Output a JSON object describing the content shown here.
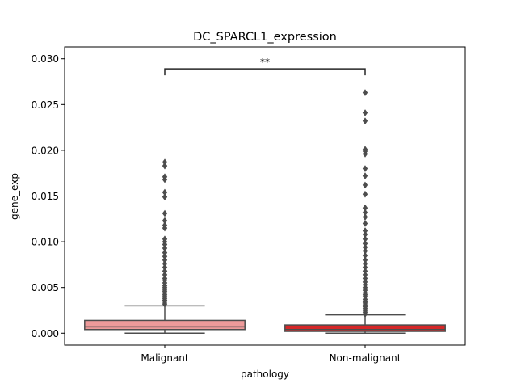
{
  "chart_data": {
    "type": "box",
    "title": "DC_SPARCL1_expression",
    "xlabel": "pathology",
    "ylabel": "gene_exp",
    "ylim": [
      -0.0013,
      0.0313
    ],
    "yticks": [
      0.0,
      0.005,
      0.01,
      0.015,
      0.02,
      0.025,
      0.03
    ],
    "ytick_labels": [
      "0.000",
      "0.005",
      "0.010",
      "0.015",
      "0.020",
      "0.025",
      "0.030"
    ],
    "categories": [
      "Malignant",
      "Non-malignant"
    ],
    "boxes": [
      {
        "category": "Malignant",
        "color": "#EE9A9A",
        "whisker_low": 0.0,
        "q1": 0.0004,
        "median": 0.0007,
        "q3": 0.0014,
        "whisker_high": 0.003,
        "outliers": [
          0.0032,
          0.0034,
          0.0036,
          0.0038,
          0.004,
          0.0042,
          0.0044,
          0.0046,
          0.0048,
          0.005,
          0.0052,
          0.0055,
          0.0058,
          0.006,
          0.0064,
          0.0068,
          0.0072,
          0.0076,
          0.008,
          0.0084,
          0.0088,
          0.0093,
          0.0097,
          0.01,
          0.0103,
          0.0115,
          0.0118,
          0.0123,
          0.0131,
          0.0149,
          0.0154,
          0.0168,
          0.0171,
          0.0183,
          0.0187
        ]
      },
      {
        "category": "Non-malignant",
        "color": "#D62728",
        "whisker_low": 0.0,
        "q1": 0.0002,
        "median": 0.0004,
        "q3": 0.0009,
        "whisker_high": 0.002,
        "outliers": [
          0.0021,
          0.0023,
          0.0025,
          0.0027,
          0.0029,
          0.0031,
          0.0033,
          0.0035,
          0.0037,
          0.004,
          0.0042,
          0.0044,
          0.0047,
          0.005,
          0.0053,
          0.0056,
          0.006,
          0.0064,
          0.0068,
          0.0072,
          0.0076,
          0.008,
          0.0085,
          0.009,
          0.0094,
          0.0098,
          0.0103,
          0.0108,
          0.0112,
          0.012,
          0.0127,
          0.0132,
          0.0137,
          0.0152,
          0.0162,
          0.0172,
          0.018,
          0.0196,
          0.0199,
          0.0201,
          0.0232,
          0.0241,
          0.0263
        ]
      }
    ],
    "significance": {
      "label": "**",
      "from": "Malignant",
      "to": "Non-malignant",
      "y": 0.0289,
      "tick_bottom": 0.0282
    }
  }
}
